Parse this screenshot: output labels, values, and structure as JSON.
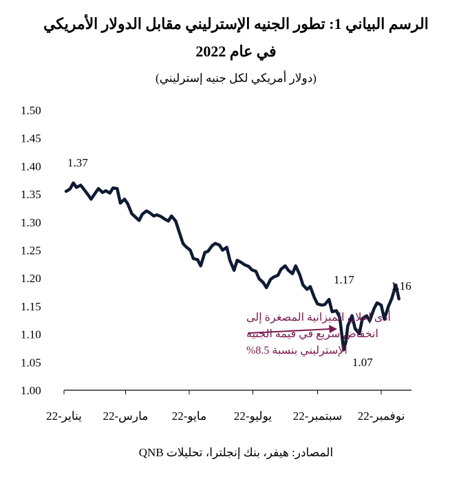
{
  "chart_data": {
    "type": "line",
    "title_line1": "الرسم البياني 1: تطور الجنيه الإسترليني مقابل الدولار الأمريكي",
    "title_line2": "في عام 2022",
    "subtitle": "(دولار أمريكي لكل جنيه إسترليني)",
    "source": "المصادر: هيفر، بنك إنجلترا، تحليلات QNB",
    "ylim": [
      1.0,
      1.5
    ],
    "yticks": [
      "1.00",
      "1.05",
      "1.10",
      "1.15",
      "1.20",
      "1.25",
      "1.30",
      "1.35",
      "1.40",
      "1.45",
      "1.50"
    ],
    "xlim": [
      "2022-01-01",
      "2022-11-30"
    ],
    "xtick_labels": [
      "يناير-22",
      "مارس-22",
      "مايو-22",
      "يوليو-22",
      "سبتمبر-22",
      "نوفمبر-22"
    ],
    "xtick_dates": [
      "2022-01-01",
      "2022-03-01",
      "2022-05-01",
      "2022-07-01",
      "2022-09-01",
      "2022-11-01"
    ],
    "series": [
      {
        "color": "#0f1b33",
        "x": [
          "2022-01-03",
          "2022-01-05",
          "2022-01-07",
          "2022-01-10",
          "2022-01-13",
          "2022-01-17",
          "2022-01-20",
          "2022-01-24",
          "2022-01-27",
          "2022-01-31",
          "2022-02-03",
          "2022-02-07",
          "2022-02-10",
          "2022-02-14",
          "2022-02-17",
          "2022-02-21",
          "2022-02-24",
          "2022-02-28",
          "2022-03-03",
          "2022-03-07",
          "2022-03-10",
          "2022-03-14",
          "2022-03-17",
          "2022-03-21",
          "2022-03-24",
          "2022-03-28",
          "2022-03-31",
          "2022-04-04",
          "2022-04-07",
          "2022-04-11",
          "2022-04-14",
          "2022-04-18",
          "2022-04-21",
          "2022-04-25",
          "2022-04-28",
          "2022-05-02",
          "2022-05-05",
          "2022-05-09",
          "2022-05-12",
          "2022-05-16",
          "2022-05-19",
          "2022-05-23",
          "2022-05-26",
          "2022-05-30",
          "2022-06-02",
          "2022-06-06",
          "2022-06-09",
          "2022-06-13",
          "2022-06-16",
          "2022-06-20",
          "2022-06-23",
          "2022-06-27",
          "2022-06-30",
          "2022-07-04",
          "2022-07-07",
          "2022-07-11",
          "2022-07-14",
          "2022-07-18",
          "2022-07-21",
          "2022-07-25",
          "2022-07-28",
          "2022-08-01",
          "2022-08-04",
          "2022-08-08",
          "2022-08-11",
          "2022-08-15",
          "2022-08-18",
          "2022-08-22",
          "2022-08-25",
          "2022-08-29",
          "2022-09-01",
          "2022-09-05",
          "2022-09-08",
          "2022-09-12",
          "2022-09-15",
          "2022-09-19",
          "2022-09-22",
          "2022-09-23",
          "2022-09-26",
          "2022-09-28",
          "2022-09-30",
          "2022-10-04",
          "2022-10-07",
          "2022-10-11",
          "2022-10-14",
          "2022-10-18",
          "2022-10-21",
          "2022-10-25",
          "2022-10-28",
          "2022-11-01",
          "2022-11-04",
          "2022-11-08",
          "2022-11-11",
          "2022-11-15",
          "2022-11-18"
        ],
        "y": [
          1.355,
          1.357,
          1.36,
          1.37,
          1.362,
          1.366,
          1.359,
          1.349,
          1.341,
          1.352,
          1.36,
          1.353,
          1.356,
          1.352,
          1.361,
          1.36,
          1.334,
          1.341,
          1.333,
          1.315,
          1.31,
          1.303,
          1.314,
          1.32,
          1.317,
          1.311,
          1.313,
          1.31,
          1.306,
          1.302,
          1.311,
          1.302,
          1.285,
          1.262,
          1.256,
          1.25,
          1.235,
          1.233,
          1.222,
          1.246,
          1.248,
          1.258,
          1.262,
          1.259,
          1.25,
          1.255,
          1.232,
          1.214,
          1.232,
          1.228,
          1.224,
          1.221,
          1.215,
          1.212,
          1.199,
          1.192,
          1.183,
          1.198,
          1.202,
          1.205,
          1.216,
          1.222,
          1.214,
          1.208,
          1.222,
          1.206,
          1.188,
          1.18,
          1.185,
          1.165,
          1.154,
          1.152,
          1.153,
          1.162,
          1.14,
          1.142,
          1.131,
          1.119,
          1.072,
          1.085,
          1.115,
          1.133,
          1.11,
          1.101,
          1.128,
          1.133,
          1.124,
          1.145,
          1.156,
          1.152,
          1.127,
          1.15,
          1.163,
          1.188,
          1.163
        ]
      }
    ],
    "annotations": {
      "start_value": "1.37",
      "sep_value": "1.17",
      "low_value": "1.07",
      "end_value": "1.16",
      "note_line1": "أدى إعلان الميزانية المصغرة إلى",
      "note_line2": "انخفاض سريع في قيمة الجنيه",
      "note_line3": "الإسترليني بنسبة 8.5%",
      "note_color": "#7a1a4e",
      "axis_color": "#000000"
    }
  }
}
